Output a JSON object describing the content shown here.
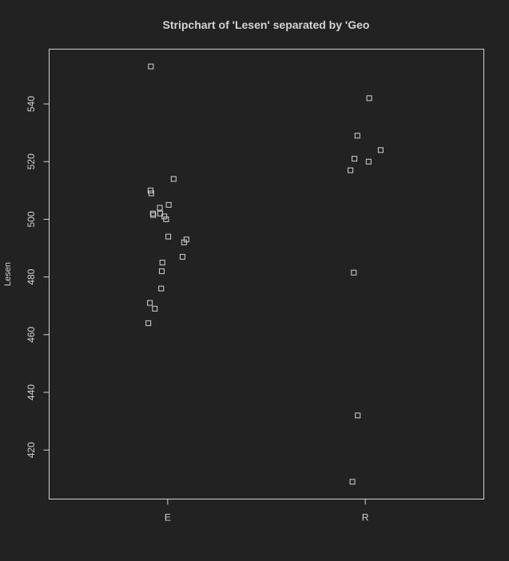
{
  "chart_data": {
    "type": "scatter",
    "title": "Stripchart of 'Lesen' separated by 'Geo",
    "xlabel": "",
    "ylabel": "Lesen",
    "categories": [
      "E",
      "R"
    ],
    "ylim": [
      403,
      559
    ],
    "yticks": [
      420,
      440,
      460,
      480,
      500,
      520,
      540
    ],
    "grid": false,
    "legend": "none",
    "marker": "open-square",
    "colors": {
      "background": "#222222",
      "foreground": "#d3d3d3"
    },
    "series": [
      {
        "category": "E",
        "points": [
          {
            "jitter": -0.085,
            "y": 553
          },
          {
            "jitter": 0.03,
            "y": 514
          },
          {
            "jitter": -0.087,
            "y": 510
          },
          {
            "jitter": -0.083,
            "y": 509
          },
          {
            "jitter": 0.005,
            "y": 505
          },
          {
            "jitter": -0.04,
            "y": 504
          },
          {
            "jitter": -0.075,
            "y": 502
          },
          {
            "jitter": -0.038,
            "y": 502
          },
          {
            "jitter": -0.073,
            "y": 501.5
          },
          {
            "jitter": -0.017,
            "y": 501
          },
          {
            "jitter": -0.008,
            "y": 500
          },
          {
            "jitter": 0.003,
            "y": 494
          },
          {
            "jitter": 0.095,
            "y": 493
          },
          {
            "jitter": 0.083,
            "y": 492
          },
          {
            "jitter": 0.075,
            "y": 487
          },
          {
            "jitter": -0.027,
            "y": 485
          },
          {
            "jitter": -0.03,
            "y": 482
          },
          {
            "jitter": -0.033,
            "y": 476
          },
          {
            "jitter": -0.09,
            "y": 471
          },
          {
            "jitter": -0.065,
            "y": 469
          },
          {
            "jitter": -0.098,
            "y": 464
          }
        ]
      },
      {
        "category": "R",
        "points": [
          {
            "jitter": 0.02,
            "y": 542
          },
          {
            "jitter": -0.04,
            "y": 529
          },
          {
            "jitter": 0.078,
            "y": 524
          },
          {
            "jitter": -0.055,
            "y": 521
          },
          {
            "jitter": 0.017,
            "y": 520
          },
          {
            "jitter": -0.075,
            "y": 517
          },
          {
            "jitter": -0.058,
            "y": 481.5
          },
          {
            "jitter": -0.038,
            "y": 432
          },
          {
            "jitter": -0.065,
            "y": 409
          }
        ]
      }
    ]
  }
}
